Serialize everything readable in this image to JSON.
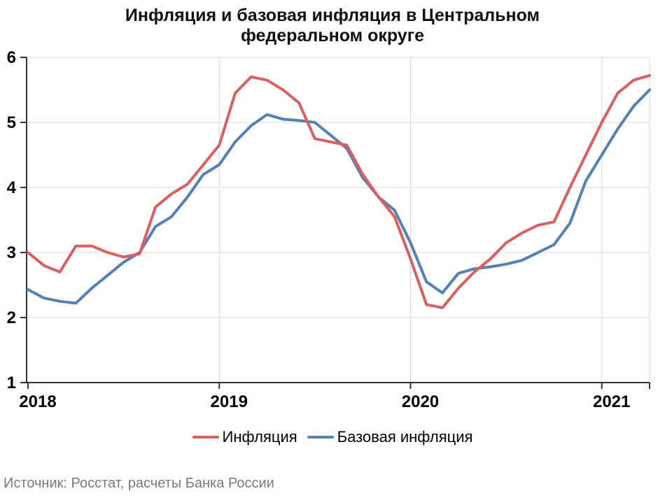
{
  "title": {
    "line1": "Инфляция и базовая инфляция в Центральном",
    "line2": "федеральном округе"
  },
  "source": "Источник: Росстат, расчеты Банка России",
  "chart_data": {
    "type": "line",
    "x_range": {
      "start": "2018-01",
      "end": "2021-04",
      "freq": "monthly"
    },
    "x_tick_labels": [
      "2018",
      "2019",
      "2020",
      "2021"
    ],
    "x_tick_indices": [
      0,
      12,
      24,
      36
    ],
    "y_ticks": [
      1,
      2,
      3,
      4,
      5,
      6
    ],
    "ylim": [
      1,
      6
    ],
    "grid": {
      "horizontal": [
        2,
        3,
        4,
        5,
        6
      ],
      "vertical_tick_indices": [
        12,
        24,
        36
      ],
      "right_border": true
    },
    "legend_position": "bottom-center",
    "colors": {
      "inflation": "#d96062",
      "core_inflation": "#5580b2",
      "grid": "#d9d9d9",
      "axis": "#333333"
    },
    "series": [
      {
        "name": "Инфляция",
        "color": "#d96062",
        "values": [
          3.0,
          2.8,
          2.7,
          3.1,
          3.1,
          3.0,
          2.93,
          2.98,
          3.7,
          3.9,
          4.05,
          4.35,
          4.65,
          5.45,
          5.7,
          5.65,
          5.5,
          5.3,
          4.75,
          4.7,
          4.65,
          4.2,
          3.85,
          3.55,
          2.9,
          2.2,
          2.15,
          2.45,
          2.7,
          2.9,
          3.15,
          3.3,
          3.42,
          3.47,
          4.0,
          4.5,
          5.0,
          5.45,
          5.65,
          5.72
        ]
      },
      {
        "name": "Базовая инфляция",
        "color": "#5580b2",
        "values": [
          2.43,
          2.3,
          2.25,
          2.22,
          2.45,
          2.65,
          2.85,
          3.0,
          3.4,
          3.55,
          3.85,
          4.2,
          4.35,
          4.7,
          4.95,
          5.12,
          5.05,
          5.03,
          5.0,
          4.8,
          4.6,
          4.15,
          3.85,
          3.65,
          3.15,
          2.55,
          2.38,
          2.68,
          2.75,
          2.78,
          2.82,
          2.88,
          3.0,
          3.12,
          3.45,
          4.1,
          4.5,
          4.9,
          5.25,
          5.5
        ]
      }
    ]
  }
}
